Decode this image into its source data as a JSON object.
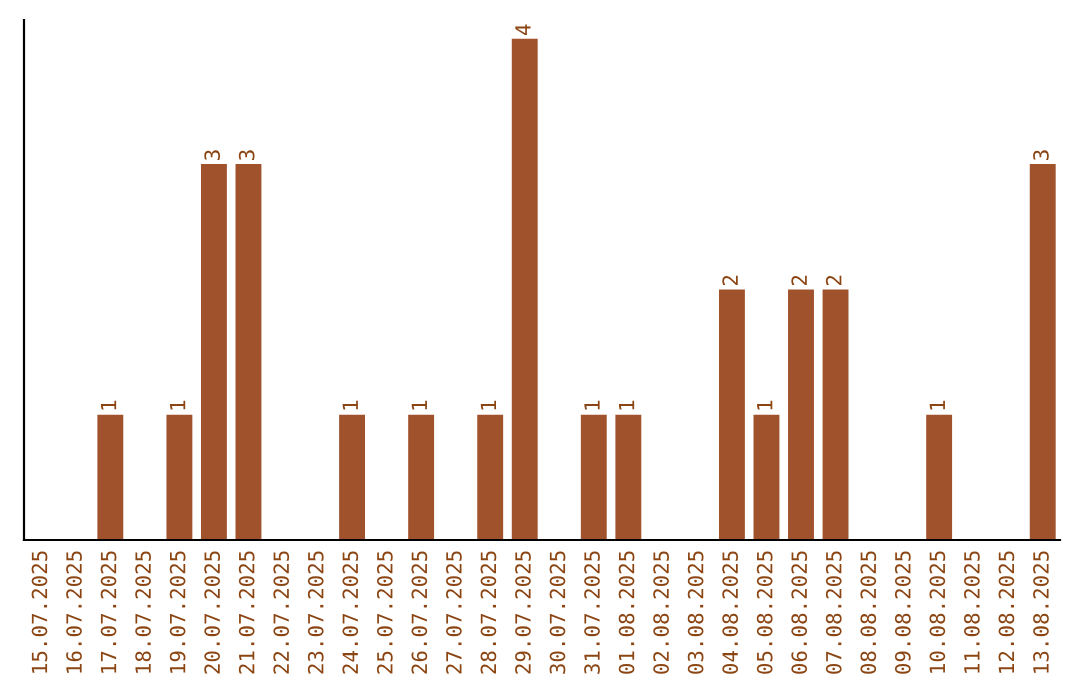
{
  "chart_data": {
    "type": "bar",
    "categories": [
      "15.07.2025",
      "16.07.2025",
      "17.07.2025",
      "18.07.2025",
      "19.07.2025",
      "20.07.2025",
      "21.07.2025",
      "22.07.2025",
      "23.07.2025",
      "24.07.2025",
      "25.07.2025",
      "26.07.2025",
      "27.07.2025",
      "28.07.2025",
      "29.07.2025",
      "30.07.2025",
      "31.07.2025",
      "01.08.2025",
      "02.08.2025",
      "03.08.2025",
      "04.08.2025",
      "05.08.2025",
      "06.08.2025",
      "07.08.2025",
      "08.08.2025",
      "09.08.2025",
      "10.08.2025",
      "11.08.2025",
      "12.08.2025",
      "13.08.2025"
    ],
    "values": [
      0,
      0,
      1,
      0,
      1,
      3,
      3,
      0,
      0,
      1,
      0,
      1,
      0,
      1,
      4,
      0,
      1,
      1,
      0,
      0,
      2,
      1,
      2,
      2,
      0,
      0,
      1,
      0,
      0,
      3
    ],
    "value_labels": [
      null,
      null,
      "1",
      null,
      "1",
      "3",
      "3",
      null,
      null,
      "1",
      null,
      "1",
      null,
      "1",
      "4",
      null,
      "1",
      "1",
      null,
      null,
      "2",
      "1",
      "2",
      "2",
      null,
      null,
      "1",
      null,
      null,
      "3"
    ],
    "color": "#a0522d",
    "ylim": [
      0,
      4.15
    ],
    "tick_labels": "x",
    "grid": false,
    "legend": false
  }
}
